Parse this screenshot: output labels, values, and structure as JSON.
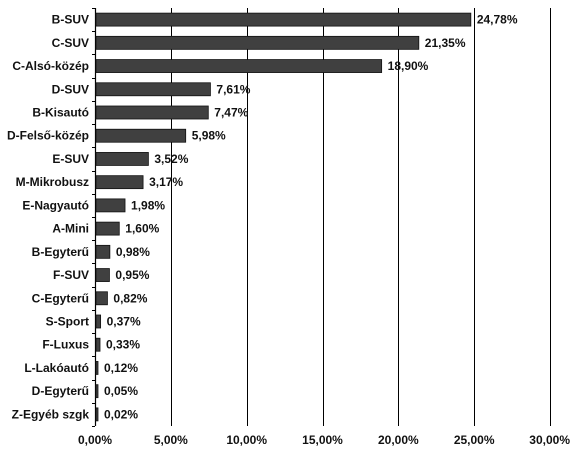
{
  "chart_data": {
    "type": "bar",
    "orientation": "horizontal",
    "categories": [
      "B-SUV",
      "C-SUV",
      "C-Alsó-közép",
      "D-SUV",
      "B-Kisautó",
      "D-Felső-közép",
      "E-SUV",
      "M-Mikrobusz",
      "E-Nagyautó",
      "A-Mini",
      "B-Egyterű",
      "F-SUV",
      "C-Egyterű",
      "S-Sport",
      "F-Luxus",
      "L-Lakóautó",
      "D-Egyterű",
      "Z-Egyéb szgk"
    ],
    "values": [
      24.78,
      21.35,
      18.9,
      7.61,
      7.47,
      5.98,
      3.52,
      3.17,
      1.98,
      1.6,
      0.98,
      0.95,
      0.82,
      0.37,
      0.33,
      0.12,
      0.05,
      0.02
    ],
    "value_labels": [
      "24,78%",
      "21,35%",
      "18,90%",
      "7,61%",
      "7,47%",
      "5,98%",
      "3,52%",
      "3,17%",
      "1,98%",
      "1,60%",
      "0,98%",
      "0,95%",
      "0,82%",
      "0,37%",
      "0,33%",
      "0,12%",
      "0,05%",
      "0,02%"
    ],
    "xlim": [
      0,
      30
    ],
    "xticks": [
      0,
      5,
      10,
      15,
      20,
      25,
      30
    ],
    "xtick_labels": [
      "0,00%",
      "5,00%",
      "10,00%",
      "15,00%",
      "20,00%",
      "25,00%",
      "30,00%"
    ],
    "grid": "vertical",
    "legend": "none",
    "bar_color": "#404040",
    "grid_color": "#000000"
  }
}
